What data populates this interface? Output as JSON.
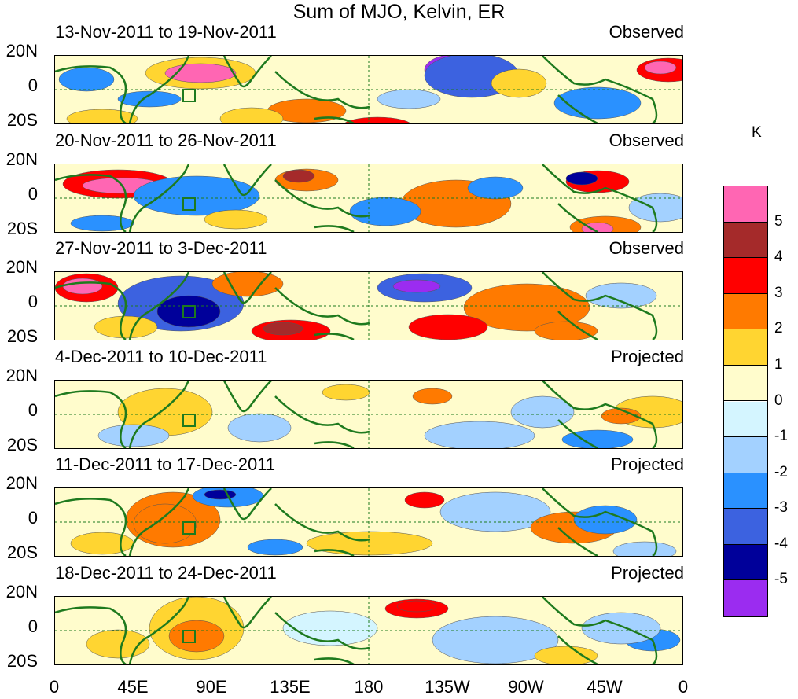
{
  "title": "Sum of MJO, Kelvin, ER",
  "units": "K",
  "panels": [
    {
      "dates": "13-Nov-2011 to 19-Nov-2011",
      "kind": "Observed"
    },
    {
      "dates": "20-Nov-2011 to 26-Nov-2011",
      "kind": "Observed"
    },
    {
      "dates": "27-Nov-2011 to 3-Dec-2011",
      "kind": "Observed"
    },
    {
      "dates": "4-Dec-2011 to 10-Dec-2011",
      "kind": "Projected"
    },
    {
      "dates": "11-Dec-2011 to 17-Dec-2011",
      "kind": "Projected"
    },
    {
      "dates": "18-Dec-2011 to 24-Dec-2011",
      "kind": "Projected"
    }
  ],
  "lat_ticks": [
    "20N",
    "0",
    "20S"
  ],
  "lon_ticks": [
    "0",
    "45E",
    "90E",
    "135E",
    "180",
    "135W",
    "90W",
    "45W",
    "0"
  ],
  "legend": {
    "labels": [
      "5",
      "4",
      "3",
      "2",
      "1",
      "0",
      "-1",
      "-2",
      "-3",
      "-4",
      "-5"
    ],
    "colors": [
      "#ff66b3",
      "#a52a2a",
      "#ff0000",
      "#ff7a00",
      "#ffd531",
      "#fffccc",
      "#d4f5ff",
      "#a3d1ff",
      "#2a91ff",
      "#3c62e0",
      "#00009a",
      "#9b2cf0"
    ]
  },
  "colors": {
    "coast": "#1e7a1e",
    "background": "#ffffff"
  }
}
